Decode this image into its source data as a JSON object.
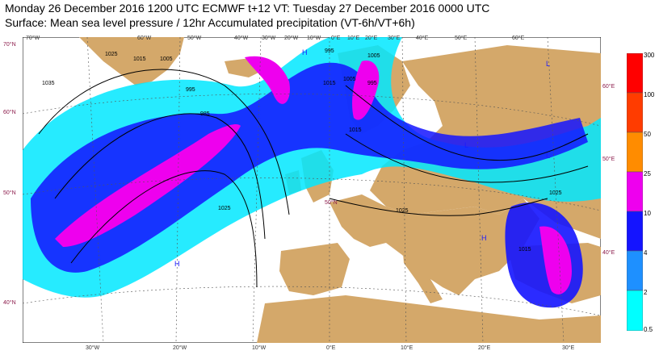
{
  "header": {
    "line1": "Monday 26 December 2016 1200 UTC  ECMWF  t+12  VT: Tuesday 27 December 2016 0000 UTC",
    "line2": "Surface: Mean sea level pressure / 12hr Accumulated precipitation (VT-6h/VT+6h)"
  },
  "legend": {
    "title": "",
    "levels": [
      "300",
      "100",
      "50",
      "25",
      "10",
      "4",
      "2",
      "0.5"
    ],
    "colors": [
      "#ff0000",
      "#ff3c00",
      "#ff8c00",
      "#ff6a00",
      "#ee00ee",
      "#1414ff",
      "#1e90ff",
      "#00ffff"
    ]
  },
  "map": {
    "top_lon_labels": [
      "70°W",
      "60°W",
      "50°W",
      "40°W",
      "30°W",
      "20°W",
      "10°W",
      "0°E",
      "10°E",
      "20°E",
      "30°E",
      "40°E",
      "50°E",
      "60°E"
    ],
    "bottom_lon_labels": [
      "30°W",
      "20°W",
      "10°W",
      "0°E",
      "10°E",
      "20°E",
      "30°E"
    ],
    "left_lat_labels": [
      "70°N",
      "60°N",
      "50°N",
      "40°N"
    ],
    "right_lat_labels": [
      "60°E",
      "50°E",
      "40°E"
    ],
    "inner_labels": [
      "50°N"
    ],
    "isobar_labels": [
      "1025",
      "1015",
      "1005",
      "995",
      "985",
      "995",
      "1005",
      "1015",
      "1025",
      "1035",
      "1025",
      "1015",
      "1025",
      "1015",
      "995",
      "1005"
    ],
    "pressure_centers": [
      "H",
      "H",
      "H",
      "L",
      "L",
      "L"
    ]
  },
  "colors": {
    "land": "#d4a86a",
    "sea": "#ffffff",
    "isobar": "#000000",
    "graticule": "#555555"
  }
}
